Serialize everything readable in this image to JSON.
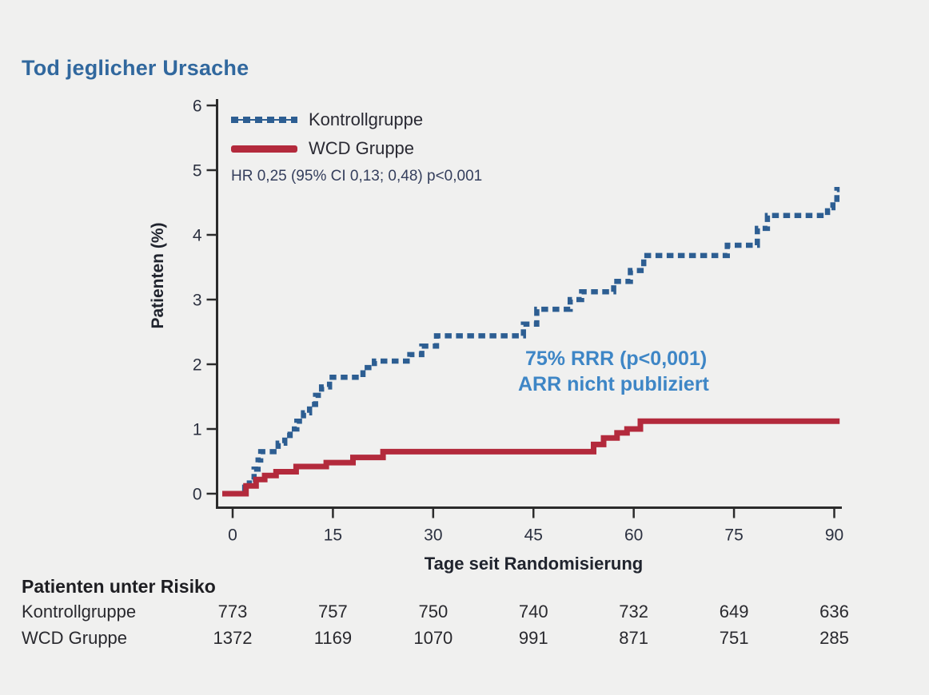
{
  "chart_data": {
    "type": "line",
    "subtype": "kaplan-meier-step",
    "title": "Tod jeglicher Ursache",
    "xlabel": "Tage seit Randomisierung",
    "ylabel": "Patienten (%)",
    "xlim": [
      0,
      90
    ],
    "ylim": [
      0,
      6
    ],
    "x_ticks": [
      0,
      15,
      30,
      45,
      60,
      75,
      90
    ],
    "y_ticks": [
      0,
      1,
      2,
      3,
      4,
      5,
      6
    ],
    "grid": false,
    "legend_position": "top-left-inside",
    "hr_annotation": "HR 0,25 (95% CI 0,13; 0,48) p<0,001",
    "rrr_annotation_line1": "75% RRR (p<0,001)",
    "rrr_annotation_line2": "ARR nicht publiziert",
    "annotation_color": "#3e86c6",
    "series": [
      {
        "name": "Kontrollgruppe",
        "color": "#2d5e92",
        "style": "dashed",
        "points": [
          [
            0,
            0
          ],
          [
            1.8,
            0.1
          ],
          [
            2.5,
            0.22
          ],
          [
            3.2,
            0.38
          ],
          [
            3.8,
            0.52
          ],
          [
            4.2,
            0.65
          ],
          [
            6.8,
            0.78
          ],
          [
            7.8,
            0.9
          ],
          [
            8.6,
            1.0
          ],
          [
            9.6,
            1.12
          ],
          [
            10.6,
            1.25
          ],
          [
            11.5,
            1.38
          ],
          [
            12.4,
            1.52
          ],
          [
            13.3,
            1.65
          ],
          [
            14.5,
            1.8
          ],
          [
            19.5,
            1.95
          ],
          [
            21.2,
            2.05
          ],
          [
            26.5,
            2.15
          ],
          [
            28.3,
            2.28
          ],
          [
            30.5,
            2.44
          ],
          [
            43.5,
            2.62
          ],
          [
            45.5,
            2.85
          ],
          [
            50.5,
            3.0
          ],
          [
            52.2,
            3.12
          ],
          [
            57,
            3.28
          ],
          [
            59.5,
            3.45
          ],
          [
            61.5,
            3.68
          ],
          [
            74,
            3.84
          ],
          [
            78.5,
            4.1
          ],
          [
            80,
            4.3
          ],
          [
            89,
            4.42
          ],
          [
            89.8,
            4.55
          ],
          [
            90.4,
            4.7
          ],
          [
            90.8,
            4.7
          ]
        ]
      },
      {
        "name": "WCD Gruppe",
        "color": "#b32a3c",
        "style": "solid",
        "points": [
          [
            0,
            0
          ],
          [
            2,
            0.12
          ],
          [
            3.5,
            0.22
          ],
          [
            4.8,
            0.28
          ],
          [
            6.5,
            0.34
          ],
          [
            9.5,
            0.42
          ],
          [
            14,
            0.48
          ],
          [
            18,
            0.56
          ],
          [
            22.5,
            0.65
          ],
          [
            54,
            0.76
          ],
          [
            55.5,
            0.86
          ],
          [
            57.5,
            0.94
          ],
          [
            59,
            1.0
          ],
          [
            61,
            1.12
          ],
          [
            90.8,
            1.12
          ]
        ]
      }
    ],
    "risk_table": {
      "title": "Patienten unter Risiko",
      "days": [
        0,
        15,
        30,
        45,
        60,
        75,
        90
      ],
      "rows": [
        {
          "name": "Kontrollgruppe",
          "values": [
            "773",
            "757",
            "750",
            "740",
            "732",
            "649",
            "636"
          ]
        },
        {
          "name": "WCD Gruppe",
          "values": [
            "1372",
            "1169",
            "1070",
            "991",
            "871",
            "751",
            "285"
          ]
        }
      ]
    }
  }
}
